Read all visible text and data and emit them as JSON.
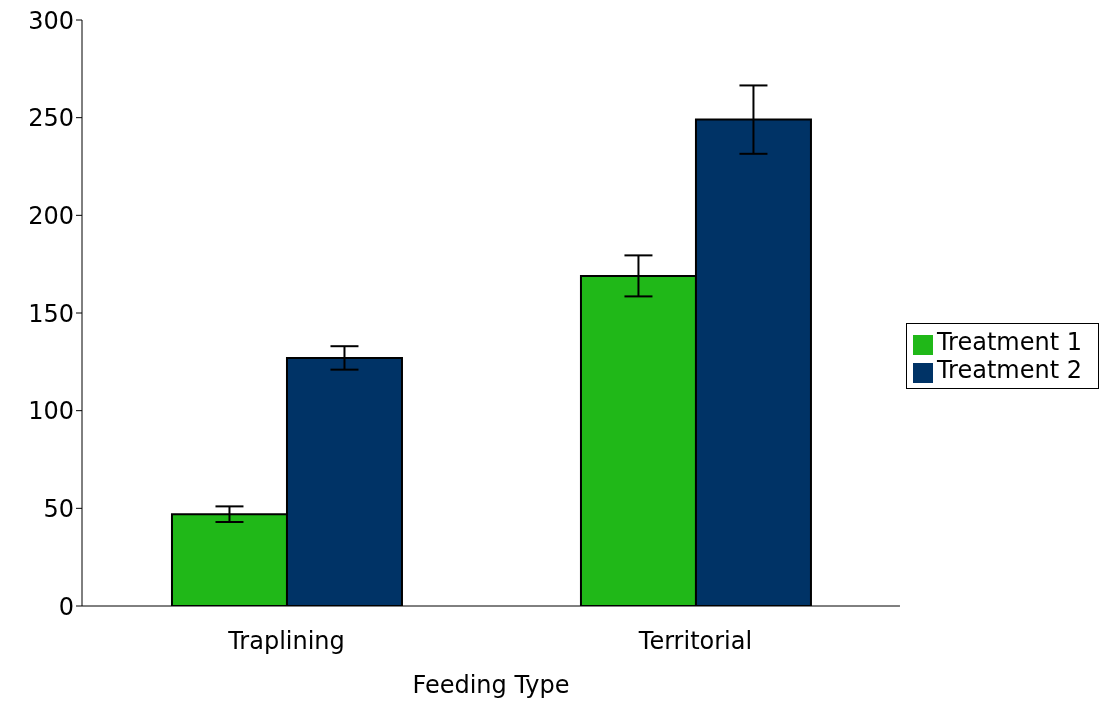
{
  "chart_data": {
    "type": "bar",
    "xlabel": "Feeding Type",
    "categories": [
      "Traplining",
      "Territorial"
    ],
    "series": [
      {
        "name": "Treatment 1",
        "color": "#20b818",
        "values": [
          47,
          169
        ],
        "errors": [
          4,
          10.5
        ]
      },
      {
        "name": "Treatment 2",
        "color": "#003366",
        "values": [
          127,
          249
        ],
        "errors": [
          6,
          17.5
        ]
      }
    ],
    "ylim": [
      0,
      300
    ],
    "yticks": [
      0,
      50,
      100,
      150,
      200,
      250,
      300
    ],
    "grid": false,
    "legend": "right"
  }
}
